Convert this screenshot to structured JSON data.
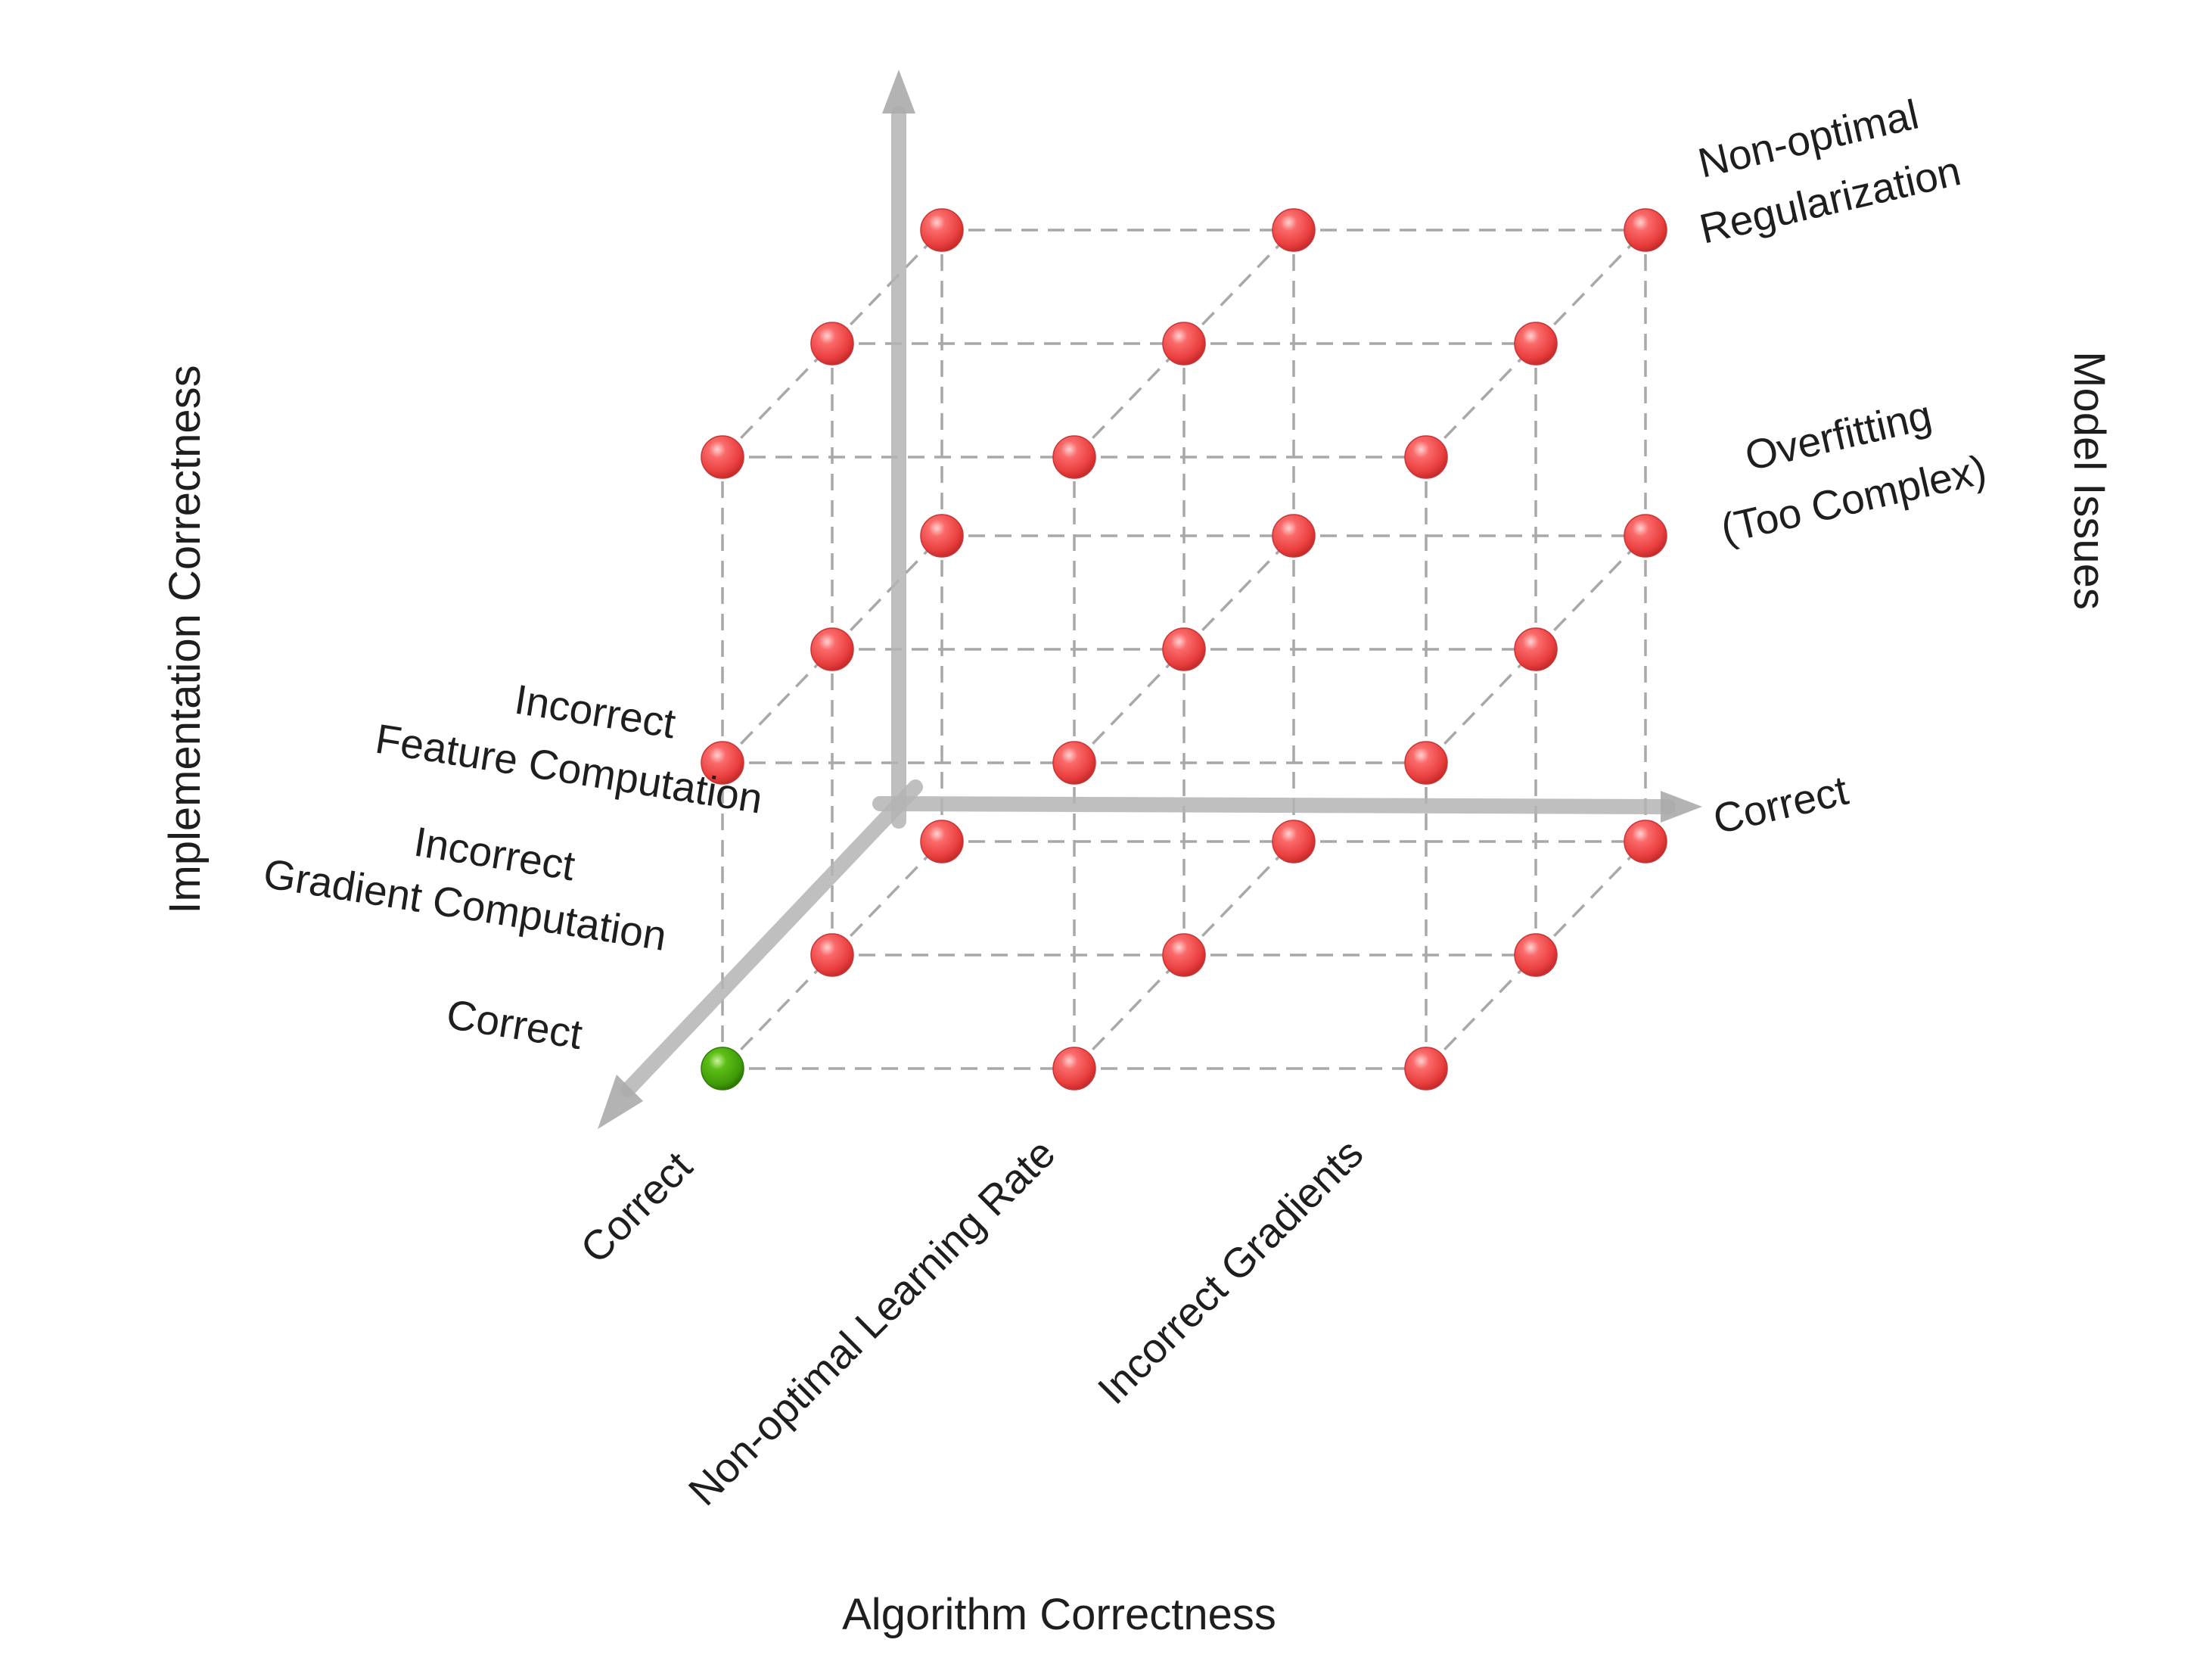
{
  "axis_titles": {
    "algorithm": "Algorithm Correctness",
    "implementation": "Implementation Correctness",
    "model": "Model Issues"
  },
  "algorithm_levels": [
    "Correct",
    "Non-optimal Learning Rate",
    "Incorrect Gradients"
  ],
  "implementation_levels": [
    [
      "Correct"
    ],
    [
      "Incorrect",
      "Gradient Computation"
    ],
    [
      "Incorrect",
      "Feature Computation"
    ]
  ],
  "model_levels": [
    [
      "Correct"
    ],
    [
      "Overfitting",
      "(Too Complex)"
    ],
    [
      "Non-optimal",
      "Regularization"
    ]
  ],
  "colors": {
    "correct_point": "#44a80a",
    "issue_point": "#f04848",
    "grid": "#a8a8a8",
    "axis": "#b4b4b4"
  }
}
